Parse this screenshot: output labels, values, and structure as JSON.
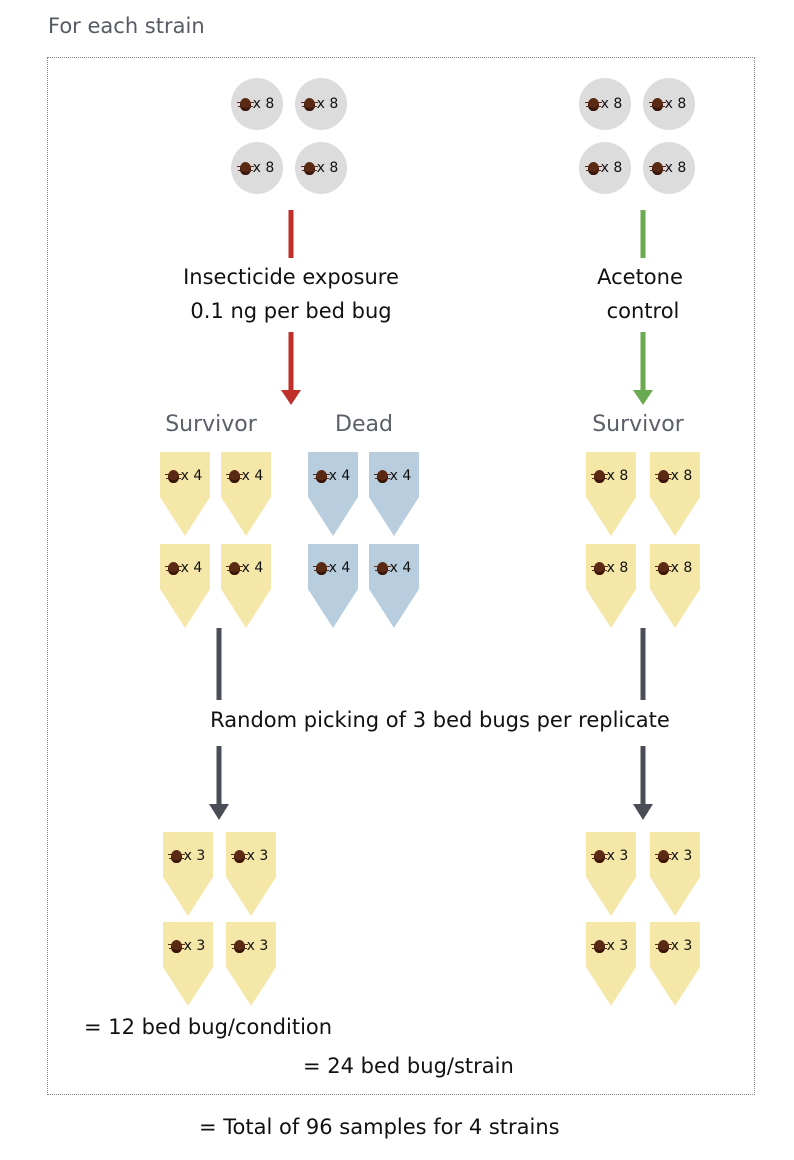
{
  "heading": "For each strain",
  "dish_count_label": "x 8",
  "left_arrow_label_line1": "Insecticide exposure",
  "left_arrow_label_line2": "0.1 ng per bed bug",
  "right_arrow_label_line1": "Acetone",
  "right_arrow_label_line2": "control",
  "groups": {
    "left_survivor": "Survivor",
    "left_dead": "Dead",
    "right_survivor": "Survivor"
  },
  "tube_labels": {
    "left_survivor": "x 4",
    "left_dead": "x 4",
    "right_survivor": "x 8",
    "picked": "x 3"
  },
  "picking_label": "Random picking of 3 bed bugs per replicate",
  "per_condition": "= 12 bed bug/condition",
  "per_strain": "= 24 bed bug/strain",
  "total": "= Total of 96 samples for 4 strains",
  "colors": {
    "insecticide_arrow": "#c0302b",
    "control_arrow": "#6aaa50",
    "picking_arrow": "#4a4d55",
    "survivor_tube": "#f5e7a8",
    "dead_tube": "#b8cddd",
    "dish": "#dcdcdc"
  },
  "icons": [
    "bed-bug-icon"
  ]
}
